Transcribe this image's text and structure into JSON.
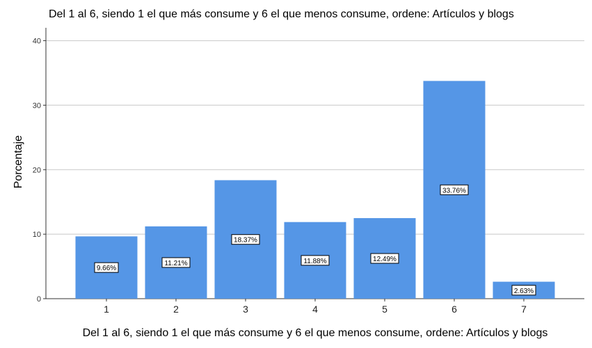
{
  "chart_data": {
    "type": "bar",
    "title": "Del 1 al 6, siendo 1 el que más consume y 6 el que menos consume, ordene: Artículos y blogs",
    "xlabel": "Del 1 al 6, siendo 1 el que más consume y 6 el que menos consume, ordene: Artículos y blogs",
    "ylabel": "Porcentaje",
    "categories": [
      "1",
      "2",
      "3",
      "4",
      "5",
      "6",
      "7"
    ],
    "values": [
      9.66,
      11.21,
      18.37,
      11.88,
      12.49,
      33.76,
      2.63
    ],
    "data_labels": [
      "9.66%",
      "11.21%",
      "18.37%",
      "11.88%",
      "12.49%",
      "33.76%",
      "2.63%"
    ],
    "yticks": [
      0,
      10,
      20,
      30,
      40
    ],
    "ylim": [
      0,
      42
    ],
    "grid": true,
    "bar_color": "#5596e6"
  }
}
